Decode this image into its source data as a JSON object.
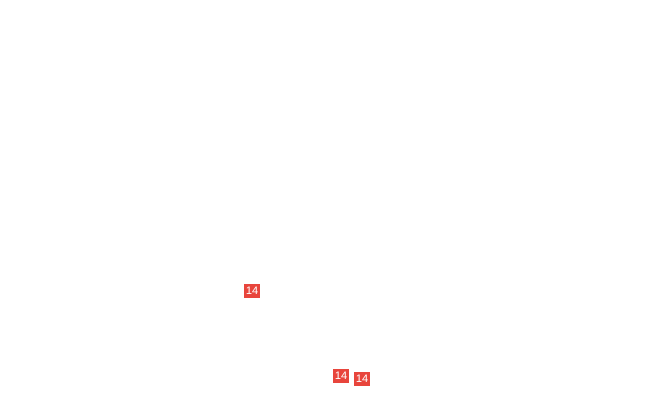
{
  "badges": [
    {
      "label": "14"
    },
    {
      "label": "14"
    },
    {
      "label": "14"
    }
  ],
  "colors": {
    "badge": "#e8453c",
    "background": "#ffffff"
  }
}
